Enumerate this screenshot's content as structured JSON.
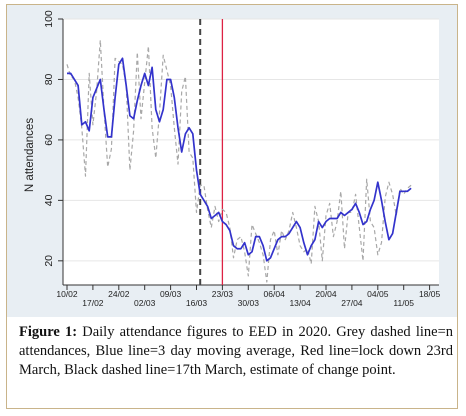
{
  "chart_data": {
    "type": "line",
    "ylabel": "N attendances",
    "xlabel": "",
    "ylim": [
      12,
      100
    ],
    "yticks": [
      20,
      40,
      60,
      80,
      100
    ],
    "x_start": "10/02",
    "x_end": "20/05",
    "xticks_top": [
      "10/02",
      "24/02",
      "09/03",
      "23/03",
      "06/04",
      "20/04",
      "04/05",
      "18/05"
    ],
    "xticks_bottom": [
      "17/02",
      "02/03",
      "16/03",
      "30/03",
      "13/04",
      "27/04",
      "11/05"
    ],
    "series": [
      {
        "name": "n attendances",
        "style": "dashed",
        "color": "#a8a8a8",
        "values": [
          85,
          81,
          80,
          74,
          64,
          48,
          82,
          65,
          76,
          93,
          70,
          51,
          57,
          87,
          86,
          85,
          78,
          50,
          63,
          89,
          67,
          79,
          91,
          64,
          54,
          69,
          88,
          83,
          78,
          64,
          52,
          76,
          81,
          56,
          54,
          36,
          45,
          45,
          37,
          31,
          38,
          33,
          37,
          36,
          31,
          21,
          27,
          28,
          23,
          15,
          32,
          29,
          26,
          22,
          13,
          27,
          30,
          22,
          30,
          27,
          30,
          36,
          31,
          25,
          23,
          24,
          19,
          38,
          33,
          20,
          35,
          39,
          28,
          33,
          43,
          24,
          36,
          36,
          42,
          31,
          20,
          47,
          33,
          31,
          22,
          26,
          41,
          46,
          42,
          35,
          44,
          42,
          44,
          45
        ]
      },
      {
        "name": "3 day moving average",
        "style": "solid",
        "color": "#3333cc",
        "values": [
          82,
          82,
          80,
          78,
          65,
          66,
          63,
          74,
          77,
          80,
          70,
          61,
          61,
          74,
          85,
          87,
          78,
          68,
          67,
          73,
          78,
          82,
          78,
          84,
          70,
          66,
          70,
          80,
          80,
          74,
          64,
          56,
          62,
          64,
          62,
          50,
          42,
          40,
          38,
          34,
          35,
          36,
          33,
          32,
          30,
          25,
          24,
          24,
          26,
          22,
          23,
          28,
          28,
          25,
          20,
          21,
          24,
          27,
          28,
          28,
          29,
          31,
          33,
          31,
          26,
          22,
          25,
          27,
          33,
          31,
          33,
          34,
          34,
          34,
          36,
          35,
          36,
          37,
          39,
          36,
          32,
          33,
          37,
          40,
          46,
          40,
          33,
          27,
          29,
          36,
          43,
          43,
          43,
          44
        ]
      },
      {
        "name": "Lock down 23rd March",
        "style": "vline",
        "color": "#dd2244",
        "x": "23/03"
      },
      {
        "name": "17th March, estimate of change point",
        "style": "vline-dashed",
        "color": "#444444",
        "x": "17/03"
      }
    ]
  },
  "caption": {
    "label": "Figure 1:",
    "text": " Daily attendance figures to EED in 2020. Grey dashed line=n attendances, Blue line=3 day moving average, Red line=lock down 23rd March, Black dashed line=17th March, estimate of change point."
  },
  "colors": {
    "plot_bg": "#ffffff",
    "outer_bg": "#e8eef3",
    "grid": "#e6e6e6",
    "frame_border": "#c9b48a"
  }
}
